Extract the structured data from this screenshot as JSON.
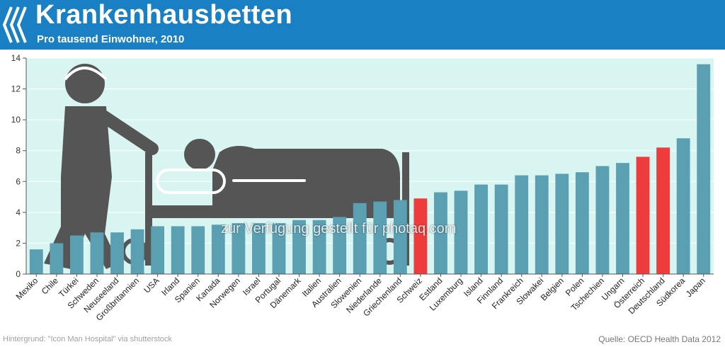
{
  "header": {
    "title": "Krankenhausbetten",
    "subtitle": "Pro tausend Einwohner, 2010",
    "logo_icon": "oecd-chevron-logo-icon"
  },
  "footer": {
    "credit": "Hintergrund: \"Icon Man Hospital\" via shutterstock",
    "source": "Quelle: OECD Health Data 2012"
  },
  "watermark": "zur Verfügung gestellt für photaq.com",
  "colors": {
    "header_bg": "#1a80c4",
    "plot_bg": "#d9f5f2",
    "bar_default": "#5aa0b2",
    "bar_highlight": "#ee3b3b",
    "silhouette": "#555555"
  },
  "chart_data": {
    "type": "bar",
    "title": "Krankenhausbetten",
    "subtitle": "Pro tausend Einwohner, 2010",
    "xlabel": "",
    "ylabel": "",
    "ylim": [
      0,
      14
    ],
    "yticks": [
      0,
      2,
      4,
      6,
      8,
      10,
      12,
      14
    ],
    "grid": true,
    "categories": [
      "Mexiko",
      "Chile",
      "Türkei",
      "Schweden",
      "Neuseeland",
      "Großbritannien",
      "USA",
      "Irland",
      "Spanien",
      "Kanada",
      "Norwegen",
      "Israel",
      "Portugal",
      "Dänemark",
      "Italien",
      "Australien",
      "Slowenien",
      "Niederlande",
      "Griechenland",
      "Schweiz",
      "Estland",
      "Luxemburg",
      "Island",
      "Finnland",
      "Frankreich",
      "Slowakei",
      "Belgien",
      "Polen",
      "Tschechien",
      "Ungarn",
      "Österreich",
      "Deutschland",
      "Südkorea",
      "Japan"
    ],
    "values": [
      1.6,
      2.0,
      2.5,
      2.7,
      2.7,
      2.9,
      3.1,
      3.1,
      3.1,
      3.2,
      3.3,
      3.3,
      3.3,
      3.5,
      3.5,
      3.7,
      4.6,
      4.7,
      4.8,
      4.9,
      5.3,
      5.4,
      5.8,
      5.8,
      6.4,
      6.4,
      6.5,
      6.6,
      7.0,
      7.2,
      7.6,
      8.2,
      8.8,
      13.6
    ],
    "highlighted": [
      "Schweiz",
      "Österreich",
      "Deutschland"
    ]
  }
}
